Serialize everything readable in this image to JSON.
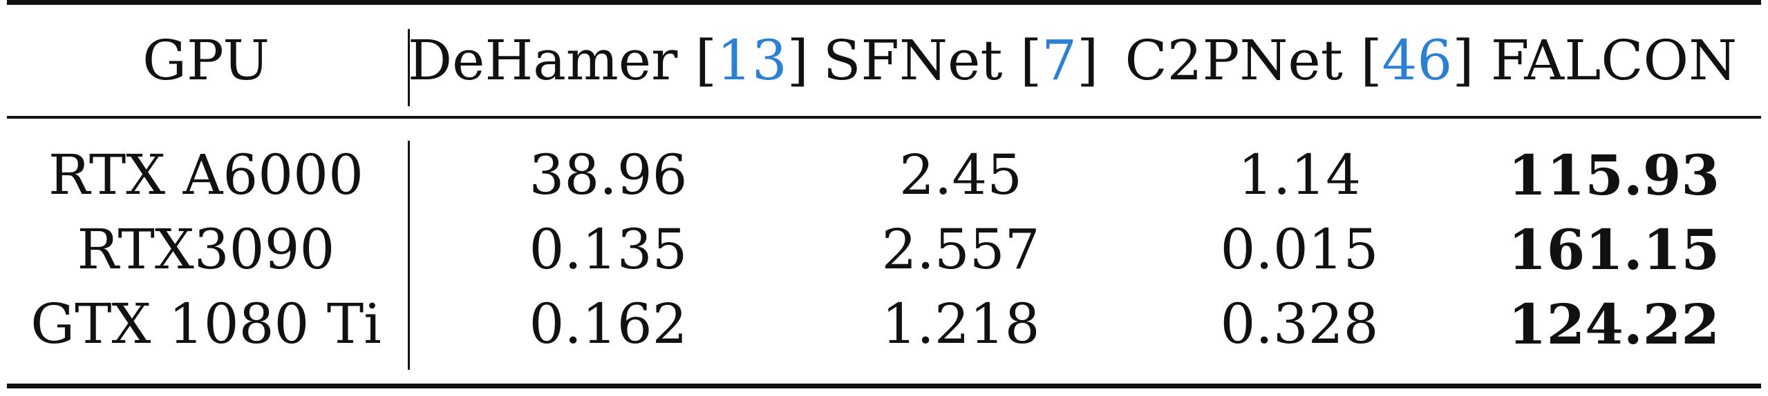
{
  "table": {
    "columns": [
      {
        "label": "GPU",
        "citation": ""
      },
      {
        "label": "DeHamer",
        "citation": "13"
      },
      {
        "label": "SFNet",
        "citation": "7"
      },
      {
        "label": "C2PNet",
        "citation": "46"
      },
      {
        "label": "FALCON",
        "citation": ""
      }
    ],
    "rows": [
      {
        "gpu": "RTX A6000",
        "dehamer": "38.96",
        "sfnet": "2.45",
        "c2pnet": "1.14",
        "falcon": "115.93"
      },
      {
        "gpu": "RTX3090",
        "dehamer": "0.135",
        "sfnet": "2.557",
        "c2pnet": "0.015",
        "falcon": "161.15"
      },
      {
        "gpu": "GTX 1080 Ti",
        "dehamer": "0.162",
        "sfnet": "1.218",
        "c2pnet": "0.328",
        "falcon": "124.22"
      }
    ],
    "citation_color": "#2b7fd4"
  }
}
